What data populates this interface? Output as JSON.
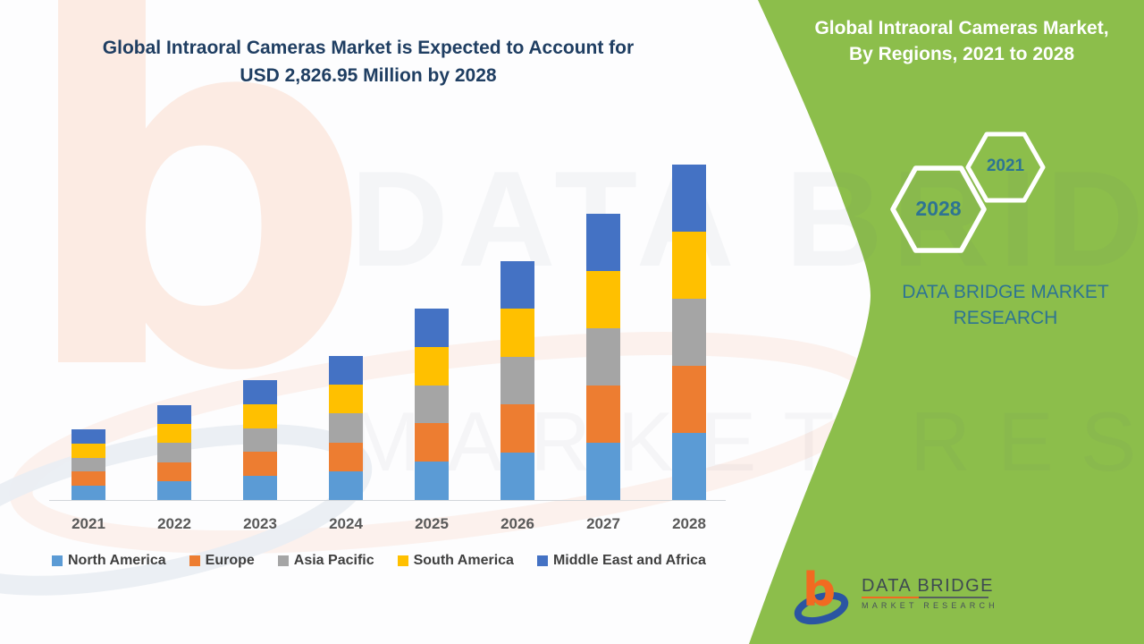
{
  "colors": {
    "green_panel": "#8CBE4B",
    "navy_title": "#1F3E62",
    "teal_text": "#2E7492",
    "axis_line": "#D2D6DA",
    "year_label": "#595959",
    "legend_text": "#3F3F3F",
    "logo_orange": "#F16A21",
    "logo_blue": "#2B55A2",
    "logo_text": "#3E4A52",
    "hexagon_stroke": "#FFFFFF"
  },
  "chart": {
    "title_line1": "Global Intraoral Cameras Market is Expected to Account for",
    "title_line2": "USD 2,826.95 Million by 2028"
  },
  "chart_data": {
    "type": "bar",
    "stacked": true,
    "title": "Global Intraoral Cameras Market is Expected to Account for USD 2,826.95 Million by 2028",
    "unit": "USD Million",
    "categories": [
      "2021",
      "2022",
      "2023",
      "2024",
      "2025",
      "2026",
      "2027",
      "2028"
    ],
    "series": [
      {
        "name": "North America",
        "color": "#5B9BD5",
        "values": [
          119.1,
          159.8,
          202.0,
          242.7,
          322.6,
          402.6,
          482.5,
          565.39
        ]
      },
      {
        "name": "Europe",
        "color": "#ED7D31",
        "values": [
          119.1,
          159.8,
          202.0,
          242.7,
          322.6,
          402.6,
          482.5,
          565.39
        ]
      },
      {
        "name": "Asia Pacific",
        "color": "#A5A5A5",
        "values": [
          119.1,
          159.8,
          202.0,
          242.7,
          322.6,
          402.6,
          482.5,
          565.39
        ]
      },
      {
        "name": "South America",
        "color": "#FFC000",
        "values": [
          119.1,
          159.8,
          202.0,
          242.7,
          322.6,
          402.6,
          482.5,
          565.39
        ]
      },
      {
        "name": "Middle East and Africa",
        "color": "#4472C4",
        "values": [
          119.1,
          159.8,
          202.0,
          242.7,
          322.6,
          402.6,
          482.5,
          565.39
        ]
      }
    ],
    "totals_estimated": [
      595.5,
      799.0,
      1010.0,
      1213.5,
      1613.0,
      2013.0,
      2412.5,
      2826.95
    ],
    "ylim": [
      0,
      2900
    ],
    "gridlines": false,
    "legend_position": "bottom"
  },
  "green_panel": {
    "heading_line1": "Global Intraoral Cameras Market,",
    "heading_line2": "By Regions, 2021 to 2028",
    "hexagons": [
      {
        "label": "2028"
      },
      {
        "label": "2021"
      }
    ],
    "tagline_line1": "DATA BRIDGE MARKET",
    "tagline_line2": "RESEARCH"
  },
  "logo": {
    "name": "DATA BRIDGE",
    "subtitle": "MARKET RESEARCH"
  },
  "watermark": {
    "line1": "DATA BRIDGE",
    "line2": "MARKET RESEARCH",
    "glyph": "b"
  }
}
